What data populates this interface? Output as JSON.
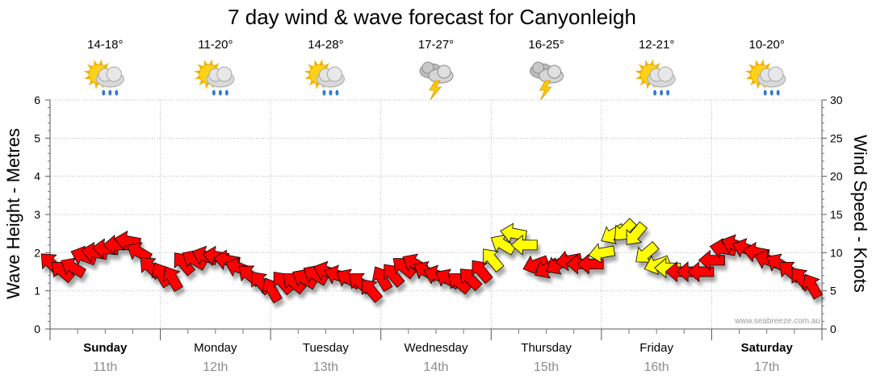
{
  "chart_data": {
    "type": "line",
    "title": "7 day wind & wave forecast for Canyonleigh",
    "ylabel_left": "Wave Height - Metres",
    "ylabel_right": "Wind Speed - Knots",
    "ylim_left": [
      0,
      6
    ],
    "ylim_right": [
      0,
      30
    ],
    "yticks_left": [
      "0",
      "1",
      "2",
      "3",
      "4",
      "5",
      "6"
    ],
    "yticks_right": [
      "0",
      "5",
      "10",
      "15",
      "20",
      "25",
      "30"
    ],
    "grid": true,
    "watermark": "www.seabreeze.com.au",
    "days": [
      {
        "name": "Sunday",
        "date": "11th",
        "bold": true,
        "temp": "14-18°",
        "icon": "sun-cloud-rain-icon"
      },
      {
        "name": "Monday",
        "date": "12th",
        "bold": false,
        "temp": "11-20°",
        "icon": "sun-cloud-rain-icon"
      },
      {
        "name": "Tuesday",
        "date": "13th",
        "bold": false,
        "temp": "14-28°",
        "icon": "sun-cloud-rain-icon"
      },
      {
        "name": "Wednesday",
        "date": "14th",
        "bold": false,
        "temp": "17-27°",
        "icon": "storm-cloud-icon"
      },
      {
        "name": "Thursday",
        "date": "15th",
        "bold": false,
        "temp": "16-25°",
        "icon": "storm-cloud-icon"
      },
      {
        "name": "Friday",
        "date": "16th",
        "bold": false,
        "temp": "12-21°",
        "icon": "sun-cloud-rain-icon"
      },
      {
        "name": "Saturday",
        "date": "17th",
        "bold": true,
        "temp": "10-20°",
        "icon": "sun-cloud-rain-icon"
      }
    ],
    "wind_series": {
      "name": "Wind Speed",
      "x_day": [
        0.0,
        0.1,
        0.2,
        0.3,
        0.4,
        0.5,
        0.6,
        0.7,
        0.8,
        0.9,
        1.0,
        1.1,
        1.2,
        1.3,
        1.4,
        1.5,
        1.6,
        1.7,
        1.8,
        1.9,
        2.0,
        2.1,
        2.2,
        2.3,
        2.4,
        2.5,
        2.6,
        2.7,
        2.8,
        2.9,
        3.0,
        3.1,
        3.2,
        3.3,
        3.4,
        3.5,
        3.6,
        3.7,
        3.8,
        3.9,
        4.0,
        4.1,
        4.2,
        4.3,
        4.4,
        4.5,
        4.6,
        4.7,
        4.8,
        4.9,
        5.0,
        5.1,
        5.2,
        5.3,
        5.4,
        5.5,
        5.6,
        5.7,
        5.8,
        5.9,
        6.0,
        6.1,
        6.2,
        6.3,
        6.4,
        6.5,
        6.6,
        6.7,
        6.8,
        6.9
      ],
      "knots": [
        8.5,
        7.5,
        8,
        9.5,
        10,
        10.5,
        11,
        11.5,
        10,
        8,
        7,
        6.5,
        8.5,
        9,
        9.5,
        9.5,
        9,
        8,
        7,
        6,
        5,
        6,
        6,
        6.5,
        7,
        7.5,
        7,
        6.5,
        6,
        5,
        6.5,
        7,
        8,
        8.5,
        7.5,
        7,
        6.5,
        6,
        6.5,
        7.5,
        9,
        11,
        12.5,
        11,
        8.5,
        8,
        8.5,
        9,
        8.5,
        8.5,
        10,
        12.5,
        13,
        12.5,
        10,
        8.5,
        8,
        7.5,
        7.5,
        7.5,
        9,
        10.5,
        11,
        10.5,
        10,
        9,
        8.5,
        7.5,
        6.5,
        5.5
      ],
      "direction_deg": [
        135,
        130,
        120,
        110,
        100,
        95,
        90,
        100,
        120,
        135,
        150,
        150,
        140,
        120,
        110,
        100,
        100,
        110,
        130,
        140,
        150,
        140,
        130,
        120,
        120,
        110,
        110,
        120,
        130,
        140,
        150,
        140,
        130,
        120,
        120,
        110,
        120,
        130,
        135,
        140,
        140,
        120,
        100,
        90,
        70,
        60,
        60,
        80,
        90,
        90,
        80,
        60,
        45,
        40,
        50,
        70,
        90,
        90,
        90,
        90,
        90,
        100,
        110,
        110,
        100,
        110,
        120,
        130,
        140,
        150
      ],
      "highlight_yellow_day_ranges": [
        [
          4.0,
          4.3
        ],
        [
          5.0,
          5.6
        ]
      ]
    }
  }
}
